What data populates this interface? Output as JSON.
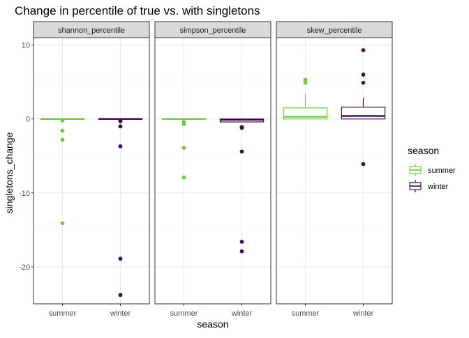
{
  "chart_data": {
    "type": "boxplot",
    "title": "Change in percentile of true vs. with singletons",
    "xlabel": "season",
    "ylabel": "singletons_change",
    "categories": [
      "summer",
      "winter"
    ],
    "ylim": [
      -25,
      11
    ],
    "y_ticks": [
      10,
      0,
      -10,
      -20
    ],
    "grid": true,
    "legend": {
      "title": "season",
      "position": "right",
      "entries": [
        {
          "label": "summer",
          "color": "#6DCD3F"
        },
        {
          "label": "winter",
          "color": "#3E0A4B"
        }
      ]
    },
    "panels": [
      {
        "strip": "shannon_percentile",
        "boxes": [
          {
            "category": "summer",
            "q1": 0,
            "median": 0,
            "q3": 0,
            "whisker_low": 0,
            "whisker_high": 0,
            "outliers": [
              -0.2,
              -1.6,
              -2.8,
              -14.1
            ]
          },
          {
            "category": "winter",
            "q1": 0,
            "median": 0,
            "q3": 0,
            "whisker_low": 0,
            "whisker_high": 0,
            "outliers": [
              -0.2,
              -0.3,
              -1.0,
              -3.7,
              -18.9,
              -23.8
            ]
          }
        ]
      },
      {
        "strip": "simpson_percentile",
        "boxes": [
          {
            "category": "summer",
            "q1": 0,
            "median": 0,
            "q3": 0,
            "whisker_low": 0,
            "whisker_high": 0,
            "outliers": [
              -0.4,
              -0.7,
              -3.9,
              -7.9
            ]
          },
          {
            "category": "winter",
            "q1": -0.4,
            "median": -0.1,
            "q3": 0,
            "whisker_low": -0.4,
            "whisker_high": 0,
            "outliers": [
              -1.1,
              -1.2,
              -4.4,
              -16.6,
              -17.9
            ]
          }
        ]
      },
      {
        "strip": "skew_percentile",
        "boxes": [
          {
            "category": "summer",
            "q1": 0,
            "median": 0.3,
            "q3": 1.5,
            "whisker_low": 0,
            "whisker_high": 3.4,
            "outliers": [
              4.9,
              5.3
            ]
          },
          {
            "category": "winter",
            "q1": 0,
            "median": 0.4,
            "q3": 1.6,
            "whisker_low": 0,
            "whisker_high": 2.9,
            "outliers": [
              4.9,
              6.0,
              9.3,
              -6.1
            ]
          }
        ]
      }
    ]
  }
}
